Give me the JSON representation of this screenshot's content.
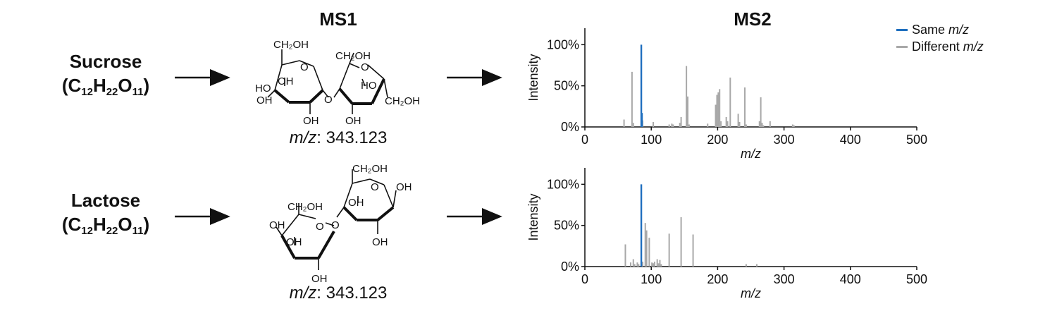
{
  "headers": {
    "ms1": "MS1",
    "ms2": "MS2"
  },
  "compounds": [
    {
      "name": "Sucrose",
      "formula_prefix": "(C",
      "c_sub": "12",
      "h": "H",
      "h_sub": "22",
      "o": "O",
      "o_sub": "11",
      "formula_suffix": ")",
      "mz_prefix": "m/z",
      "mz_value": ": 343.123",
      "structure_labels": [
        "CH₂OH",
        "O",
        "OH",
        "HO",
        "OH",
        "OH",
        "O",
        "CH₂OH",
        "O",
        "HO",
        "CH₂OH",
        "OH"
      ]
    },
    {
      "name": "Lactose",
      "formula_prefix": "(C",
      "c_sub": "12",
      "h": "H",
      "h_sub": "22",
      "o": "O",
      "o_sub": "11",
      "formula_suffix": ")",
      "mz_prefix": "m/z",
      "mz_value": ": 343.123",
      "structure_labels": [
        "CH₂OH",
        "O",
        "OH",
        "OH",
        "OH",
        "CH₂OH",
        "OH",
        "OH",
        "O",
        "OH",
        "O"
      ]
    }
  ],
  "legend": {
    "same": {
      "label": "Same ",
      "italic": "m/z",
      "color": "#1f6fbf"
    },
    "different": {
      "label": "Different ",
      "italic": "m/z",
      "color": "#a8a8a8"
    }
  },
  "chart_data": [
    {
      "type": "bar",
      "title": "",
      "xlabel": "m/z",
      "ylabel": "Intensity",
      "xlim": [
        0,
        500
      ],
      "ylim": [
        0,
        120
      ],
      "xticks": [
        "0",
        "100",
        "200",
        "300",
        "400",
        "500"
      ],
      "yticks": [
        "0%",
        "50%",
        "100%"
      ],
      "series": [
        {
          "name": "Same m/z",
          "color": "#1f6fbf",
          "x": [
            85,
            86
          ],
          "y": [
            100,
            17
          ]
        },
        {
          "name": "Different m/z",
          "color": "#a8a8a8",
          "x": [
            59,
            71,
            73,
            87,
            103,
            127,
            131,
            133,
            143,
            145,
            153,
            155,
            157,
            185,
            197,
            199,
            201,
            203,
            205,
            213,
            215,
            219,
            231,
            233,
            241,
            243,
            263,
            265,
            267,
            269,
            279,
            313,
            315
          ],
          "y": [
            9,
            67,
            5,
            8,
            6,
            3,
            4,
            3,
            5,
            12,
            74,
            37,
            3,
            4,
            27,
            39,
            42,
            46,
            7,
            12,
            7,
            60,
            16,
            6,
            48,
            3,
            7,
            36,
            5,
            2,
            7,
            3,
            2
          ]
        }
      ]
    },
    {
      "type": "bar",
      "title": "",
      "xlabel": "m/z",
      "ylabel": "Intensity",
      "xlim": [
        0,
        500
      ],
      "ylim": [
        0,
        120
      ],
      "xticks": [
        "0",
        "100",
        "200",
        "300",
        "400",
        "500"
      ],
      "yticks": [
        "0%",
        "50%",
        "100%"
      ],
      "series": [
        {
          "name": "Same m/z",
          "color": "#1f6fbf",
          "x": [
            85
          ],
          "y": [
            100
          ]
        },
        {
          "name": "Different m/z",
          "color": "#a8a8a8",
          "x": [
            61,
            69,
            73,
            75,
            79,
            81,
            87,
            91,
            93,
            97,
            101,
            103,
            105,
            109,
            111,
            113,
            115,
            127,
            145,
            163,
            243,
            259
          ],
          "y": [
            27,
            5,
            9,
            3,
            5,
            3,
            6,
            53,
            44,
            35,
            5,
            4,
            6,
            9,
            4,
            8,
            3,
            40,
            60,
            39,
            3,
            3
          ]
        }
      ]
    }
  ]
}
